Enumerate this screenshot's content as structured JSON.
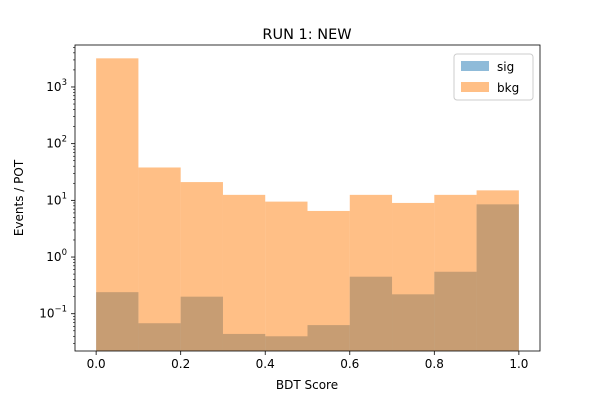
{
  "chart_data": {
    "type": "bar",
    "title": "RUN 1: NEW",
    "xlabel": "BDT Score",
    "ylabel": "Events / POT",
    "xlim": [
      -0.05,
      1.05
    ],
    "ylim": [
      0.022,
      5500
    ],
    "yscale": "log",
    "bin_edges": [
      0.0,
      0.1,
      0.2,
      0.3,
      0.4,
      0.5,
      0.6,
      0.7,
      0.8,
      0.9,
      1.0
    ],
    "x_ticks": [
      "0.0",
      "0.2",
      "0.4",
      "0.6",
      "0.8",
      "1.0"
    ],
    "x_tick_values": [
      0.0,
      0.2,
      0.4,
      0.6,
      0.8,
      1.0
    ],
    "y_ticks": [
      {
        "value": 0.1,
        "base": "10",
        "exp": "−1"
      },
      {
        "value": 1,
        "base": "10",
        "exp": "0"
      },
      {
        "value": 10,
        "base": "10",
        "exp": "1"
      },
      {
        "value": 100,
        "base": "10",
        "exp": "2"
      },
      {
        "value": 1000,
        "base": "10",
        "exp": "3"
      }
    ],
    "legend_position": "top-right",
    "grid": false,
    "series": [
      {
        "name": "sig",
        "color": "#1f77b4",
        "alpha": 0.5,
        "values": [
          0.24,
          0.068,
          0.2,
          0.044,
          0.04,
          0.063,
          0.45,
          0.22,
          0.55,
          8.5
        ]
      },
      {
        "name": "bkg",
        "color": "#ff7f0e",
        "alpha": 0.5,
        "values": [
          3200,
          38,
          21,
          12.5,
          9.5,
          6.5,
          12.5,
          9.0,
          12.5,
          15.0
        ]
      }
    ]
  }
}
